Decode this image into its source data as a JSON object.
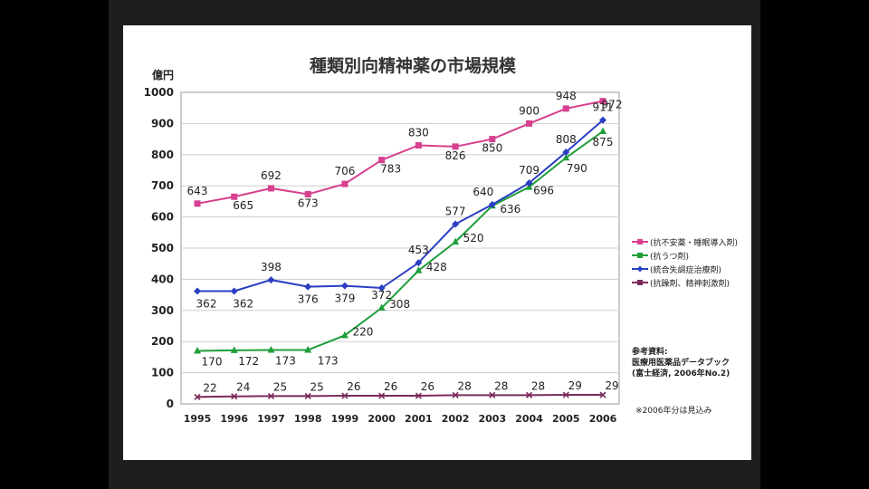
{
  "slide": {
    "title": "種類別向精神薬の市場規模",
    "y_unit": "億円",
    "source_lines": [
      "参考資料:",
      "医療用医薬品データブック",
      "(富士経済, 2006年No.2)"
    ],
    "note": "※2006年分は見込み"
  },
  "chart_data": {
    "type": "line",
    "title": "種類別向精神薬の市場規模",
    "xlabel": "",
    "ylabel": "億円",
    "x": [
      "1995",
      "1996",
      "1997",
      "1998",
      "1999",
      "2000",
      "2001",
      "2002",
      "2003",
      "2004",
      "2005",
      "2006"
    ],
    "ylim": [
      0,
      1000
    ],
    "yticks": [
      0,
      100,
      200,
      300,
      400,
      500,
      600,
      700,
      800,
      900,
      1000
    ],
    "grid": true,
    "legend_position": "right",
    "series": [
      {
        "name": "(抗不安薬・睡眠導入剤)",
        "color": "#d6408f",
        "marker": "square",
        "values": [
          643,
          665,
          692,
          673,
          706,
          783,
          830,
          826,
          850,
          900,
          948,
          972
        ]
      },
      {
        "name": "(抗うつ剤)",
        "color": "#1f9e3a",
        "marker": "triangle",
        "values": [
          170,
          172,
          173,
          173,
          220,
          308,
          428,
          520,
          636,
          696,
          790,
          875
        ]
      },
      {
        "name": "(統合失調症治療剤)",
        "color": "#2a3fc2",
        "marker": "diamond",
        "values": [
          362,
          362,
          398,
          376,
          379,
          372,
          453,
          577,
          640,
          709,
          808,
          911
        ]
      },
      {
        "name": "(抗躁剤、精神刺激剤)",
        "color": "#7a2a5a",
        "marker": "x",
        "values": [
          22,
          24,
          25,
          25,
          26,
          26,
          26,
          28,
          28,
          28,
          29,
          29
        ]
      }
    ]
  }
}
